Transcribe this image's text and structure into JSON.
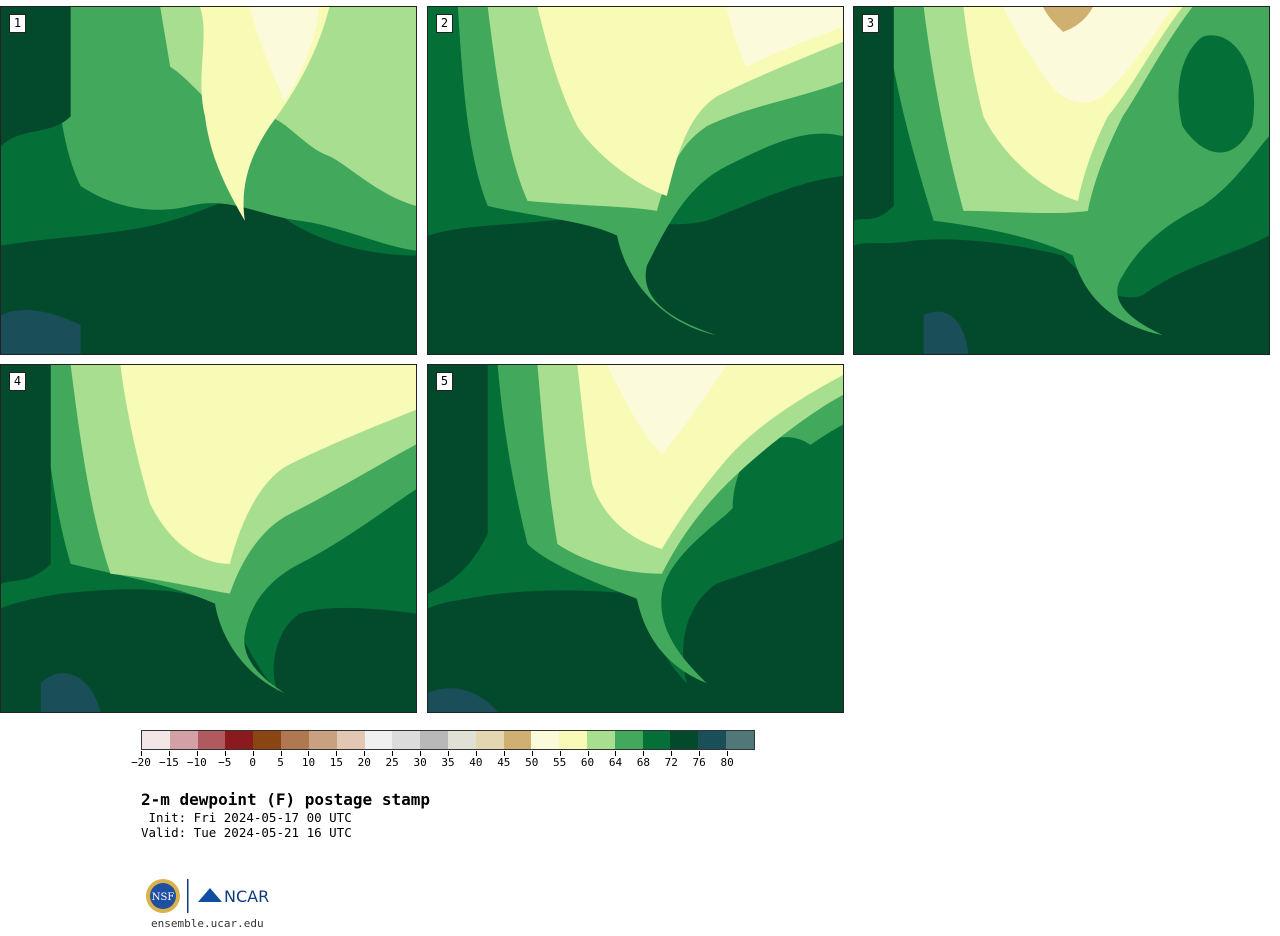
{
  "panels": [
    {
      "label": "1"
    },
    {
      "label": "2"
    },
    {
      "label": "3"
    },
    {
      "label": "4"
    },
    {
      "label": "5"
    }
  ],
  "legend": {
    "tick_labels": [
      "−20",
      "−15",
      "−10",
      "−5",
      "0",
      "5",
      "10",
      "15",
      "20",
      "25",
      "30",
      "35",
      "40",
      "45",
      "50",
      "55",
      "60",
      "64",
      "68",
      "72",
      "76",
      "80"
    ],
    "colors": [
      "#f3e6e6",
      "#d3a0a6",
      "#b05a60",
      "#8b1a1e",
      "#8a4512",
      "#b07850",
      "#c9a080",
      "#e2c8b4",
      "#f0f0f0",
      "#dcdcdc",
      "#b8b8b8",
      "#e0e0d4",
      "#e4d6b0",
      "#d0b070",
      "#fbfbdc",
      "#f8fbb6",
      "#a8de90",
      "#42a85c",
      "#047038",
      "#034a2c",
      "#1a4e58",
      "#507878"
    ]
  },
  "title": "2-m dewpoint (F) postage stamp",
  "init_text": " Init: Fri 2024-05-17 00 UTC",
  "valid_text": "Valid: Tue 2024-05-21 16 UTC",
  "footer": {
    "nsf_logo_text": "NSF",
    "ncar_logo_text": "NCAR",
    "url": "ensemble.ucar.edu"
  }
}
